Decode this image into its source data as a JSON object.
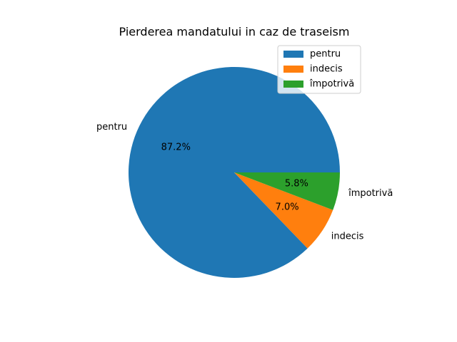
{
  "chart_data": {
    "type": "pie",
    "title": "Pierderea mandatului in caz de traseism",
    "slices": [
      {
        "label": "pentru",
        "value": 87.2,
        "pct_label": "87.2%",
        "color": "#1f77b4"
      },
      {
        "label": "indecis",
        "value": 7.0,
        "pct_label": "7.0%",
        "color": "#ff7f0e"
      },
      {
        "label": "împotrivă",
        "value": 5.8,
        "pct_label": "5.8%",
        "color": "#2ca02c"
      }
    ],
    "start_angle": 0,
    "direction": "counterclockwise",
    "legend": {
      "position": "top-right",
      "entries": [
        "pentru",
        "indecis",
        "împotrivă"
      ]
    }
  }
}
